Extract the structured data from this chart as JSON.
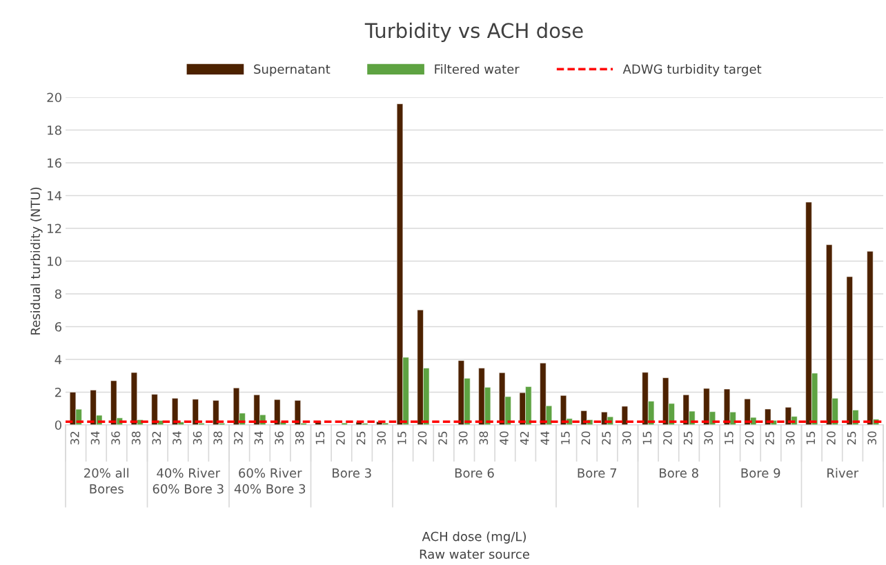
{
  "chart_data": {
    "type": "bar",
    "title": "Turbidity vs ACH dose",
    "ylabel": "Residual turbidity (NTU)",
    "categories": [
      "32",
      "34",
      "36",
      "38",
      "32",
      "34",
      "36",
      "38",
      "32",
      "34",
      "36",
      "38",
      "15",
      "20",
      "25",
      "30",
      "15",
      "20",
      "25",
      "30",
      "38",
      "40",
      "42",
      "44",
      "15",
      "20",
      "25",
      "30",
      "15",
      "20",
      "25",
      "30",
      "15",
      "20",
      "25",
      "30",
      "15",
      "20",
      "25",
      "30"
    ],
    "series": [
      {
        "name": "Supernatant",
        "color": "#4d2200",
        "values": [
          2.0,
          2.13,
          2.7,
          3.2,
          1.87,
          1.63,
          1.57,
          1.5,
          2.26,
          1.84,
          1.55,
          1.5,
          0.25,
          null,
          0.18,
          0.2,
          19.6,
          7.02,
          null,
          3.93,
          3.47,
          3.19,
          1.97,
          3.78,
          1.8,
          0.87,
          0.79,
          1.14,
          3.21,
          2.88,
          1.84,
          2.23,
          2.19,
          1.59,
          0.97,
          1.08,
          13.6,
          11.0,
          9.05,
          10.6
        ]
      },
      {
        "name": "Filtered water",
        "color": "#5ea342",
        "values": [
          0.96,
          0.59,
          0.43,
          0.32,
          0.27,
          0.18,
          0.11,
          0.11,
          0.72,
          0.62,
          0.18,
          0.11,
          null,
          0.12,
          0.1,
          0.12,
          4.13,
          3.47,
          null,
          2.85,
          2.3,
          1.73,
          2.34,
          1.17,
          0.39,
          0.32,
          0.5,
          null,
          1.45,
          1.31,
          0.84,
          0.81,
          0.79,
          0.46,
          0.28,
          0.52,
          3.16,
          1.63,
          0.91,
          0.35
        ]
      }
    ],
    "ref_lines": [
      {
        "axis": "y",
        "value": 0.2,
        "label": "ADWG turbidity target",
        "color": "#ff0000",
        "line_style": "dashed"
      }
    ],
    "annotations": [
      "20% all\nBores",
      "40% River\n60% Bore 3",
      "60% River\n40% Bore 3",
      "Bore 3",
      "Bore 6",
      "Bore 7",
      "Bore 8",
      "Bore 9",
      "River",
      "ACH dose (mg/L)\nRaw water source"
    ],
    "ylim": [
      0,
      20
    ],
    "yticks": [
      0,
      2,
      4,
      6,
      8,
      10,
      12,
      14,
      16,
      18,
      20
    ],
    "grid": "y",
    "legend": "top"
  }
}
